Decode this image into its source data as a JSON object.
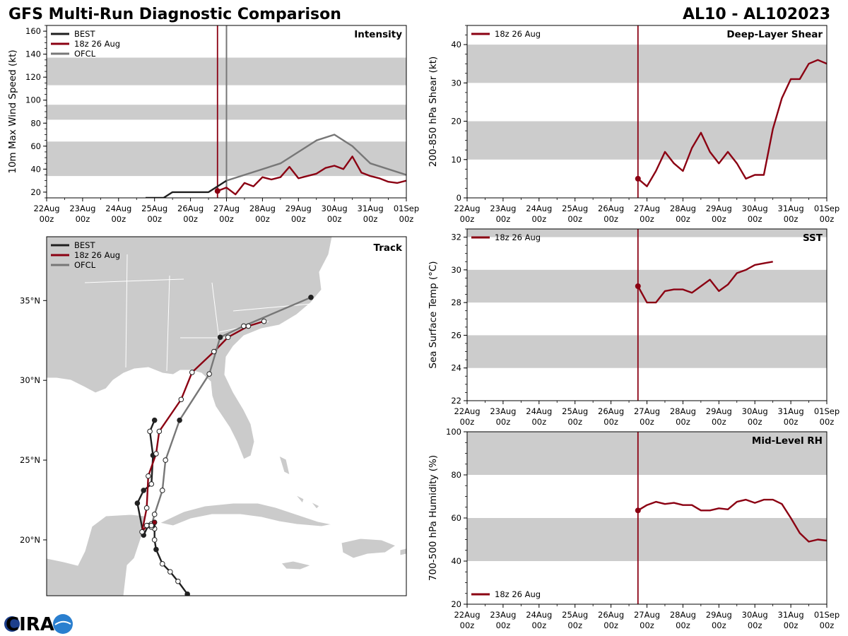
{
  "header": {
    "title": "GFS Multi-Run Diagnostic Comparison",
    "storm": "AL10 - AL102023"
  },
  "logo": {
    "text": "CIRA"
  },
  "colors": {
    "best": "#1f1f1f",
    "run": "#8b0012",
    "ofcl": "#777777",
    "band": "#cccccc",
    "land": "#cbcbcb"
  },
  "time_axis": {
    "labels": [
      "22Aug",
      "23Aug",
      "24Aug",
      "25Aug",
      "26Aug",
      "27Aug",
      "28Aug",
      "29Aug",
      "30Aug",
      "31Aug",
      "01Sep"
    ],
    "sublabel": "00z"
  },
  "chart_data": [
    {
      "id": "intensity",
      "type": "line",
      "title": "Intensity",
      "xlabel": "",
      "ylabel": "10m Max Wind Speed (kt)",
      "x_units": "days since 22Aug 00z",
      "xlim": [
        0,
        10
      ],
      "ylim": [
        15,
        165
      ],
      "yticks": [
        20,
        40,
        60,
        80,
        100,
        120,
        140,
        160
      ],
      "bands": [
        [
          34,
          64
        ],
        [
          83,
          96
        ],
        [
          113,
          137
        ]
      ],
      "init_line": 4.75,
      "ofcl_line": 5.0,
      "legend": {
        "placement": "top-left",
        "entries": [
          "BEST",
          "18z 26 Aug",
          "OFCL"
        ]
      },
      "series": [
        {
          "name": "BEST",
          "color": "#1f1f1f",
          "x": [
            2.75,
            3.25,
            3.5,
            4.5,
            5.0
          ],
          "y": [
            15,
            15,
            20,
            20,
            30
          ]
        },
        {
          "name": "OFCL",
          "color": "#777777",
          "x": [
            5.0,
            5.5,
            6.5,
            7.5,
            8.0,
            8.5,
            9.0,
            10.0
          ],
          "y": [
            30,
            35,
            45,
            65,
            70,
            60,
            45,
            35
          ]
        },
        {
          "name": "18z 26 Aug",
          "color": "#8b0012",
          "marker_first": true,
          "x": [
            4.75,
            5.0,
            5.25,
            5.5,
            5.75,
            6.0,
            6.25,
            6.5,
            6.75,
            7.0,
            7.25,
            7.5,
            7.75,
            8.0,
            8.25,
            8.5,
            8.75,
            9.0,
            9.25,
            9.5,
            9.75,
            10.0
          ],
          "y": [
            21,
            24,
            18,
            28,
            25,
            33,
            31,
            33,
            42,
            32,
            34,
            36,
            41,
            43,
            40,
            51,
            37,
            34,
            32,
            29,
            28,
            30
          ]
        }
      ]
    },
    {
      "id": "shear",
      "type": "line",
      "title": "Deep-Layer Shear",
      "xlabel": "",
      "ylabel": "200-850 hPa Shear (kt)",
      "x_units": "days since 22Aug 00z",
      "xlim": [
        0,
        10
      ],
      "ylim": [
        0,
        45
      ],
      "yticks": [
        0,
        10,
        20,
        30,
        40
      ],
      "bands": [
        [
          10,
          20
        ],
        [
          30,
          40
        ]
      ],
      "init_line": 4.75,
      "legend": {
        "placement": "top-left",
        "entries": [
          "18z 26 Aug"
        ]
      },
      "series": [
        {
          "name": "18z 26 Aug",
          "color": "#8b0012",
          "marker_first": true,
          "x": [
            4.75,
            5.0,
            5.25,
            5.5,
            5.75,
            6.0,
            6.25,
            6.5,
            6.75,
            7.0,
            7.25,
            7.5,
            7.75,
            8.0,
            8.25,
            8.5,
            8.75,
            9.0,
            9.25,
            9.5,
            9.75,
            10.0
          ],
          "y": [
            5,
            3,
            7,
            12,
            9,
            7,
            13,
            17,
            12,
            9,
            12,
            9,
            5,
            6,
            6,
            18,
            26,
            31,
            31,
            35,
            36,
            35
          ]
        }
      ]
    },
    {
      "id": "sst",
      "type": "line",
      "title": "SST",
      "xlabel": "",
      "ylabel": "Sea Surface Temp (°C)",
      "x_units": "days since 22Aug 00z",
      "xlim": [
        0,
        10
      ],
      "ylim": [
        22,
        32.5
      ],
      "yticks": [
        22,
        24,
        26,
        28,
        30,
        32
      ],
      "bands": [
        [
          24,
          26
        ],
        [
          28,
          30
        ],
        [
          32,
          33
        ]
      ],
      "init_line": 4.75,
      "legend": {
        "placement": "top-left",
        "entries": [
          "18z 26 Aug"
        ]
      },
      "series": [
        {
          "name": "18z 26 Aug",
          "color": "#8b0012",
          "marker_first": true,
          "x": [
            4.75,
            5.0,
            5.25,
            5.5,
            5.75,
            6.0,
            6.25,
            6.5,
            6.75,
            7.0,
            7.25,
            7.5,
            7.75,
            8.0,
            8.25,
            8.5
          ],
          "y": [
            29,
            28,
            28,
            28.7,
            28.8,
            28.8,
            28.6,
            29.0,
            29.4,
            28.7,
            29.1,
            29.8,
            30.0,
            30.3,
            30.4,
            30.5
          ]
        }
      ]
    },
    {
      "id": "rh",
      "type": "line",
      "title": "Mid-Level RH",
      "xlabel": "",
      "ylabel": "700-500 hPa Humidity (%)",
      "x_units": "days since 22Aug 00z",
      "xlim": [
        0,
        10
      ],
      "ylim": [
        20,
        100
      ],
      "yticks": [
        20,
        40,
        60,
        80,
        100
      ],
      "bands": [
        [
          40,
          60
        ],
        [
          80,
          100
        ]
      ],
      "init_line": 4.75,
      "legend": {
        "placement": "bottom-left",
        "entries": [
          "18z 26 Aug"
        ]
      },
      "series": [
        {
          "name": "18z 26 Aug",
          "color": "#8b0012",
          "marker_first": true,
          "x": [
            4.75,
            5.0,
            5.25,
            5.5,
            5.75,
            6.0,
            6.25,
            6.5,
            6.75,
            7.0,
            7.25,
            7.5,
            7.75,
            8.0,
            8.25,
            8.5,
            8.75,
            9.0,
            9.25,
            9.5,
            9.75,
            10.0
          ],
          "y": [
            63.5,
            66,
            67.5,
            66.5,
            67,
            66,
            66,
            63.5,
            63.5,
            64.5,
            64,
            67.5,
            68.5,
            67,
            68.5,
            68.5,
            66.5,
            60,
            53,
            49,
            50,
            49.5
          ]
        }
      ]
    },
    {
      "id": "track",
      "type": "scatter",
      "title": "Track",
      "x_units": "degrees longitude",
      "y_units": "degrees latitude",
      "xlim": [
        -91,
        -68
      ],
      "ylim": [
        16.5,
        39
      ],
      "ylabels": [
        "35°N",
        "30°N",
        "25°N",
        "20°N"
      ],
      "yticks": [
        35,
        30,
        25,
        20
      ],
      "legend": {
        "placement": "top-left",
        "entries": [
          "BEST",
          "18z 26 Aug",
          "OFCL"
        ]
      },
      "series": [
        {
          "name": "BEST",
          "color": "#1f1f1f",
          "x": [
            -82.0,
            -82.6,
            -83.1,
            -83.6,
            -84.0,
            -84.1,
            -84.1,
            -84.2,
            -84.3,
            -84.5,
            -84.8,
            -85.2,
            -84.8,
            -84.3,
            -84.2,
            -84.4,
            -84.1
          ],
          "y": [
            16.6,
            17.4,
            18.0,
            18.5,
            19.4,
            20.0,
            20.7,
            20.9,
            21.0,
            20.9,
            20.3,
            22.3,
            23.1,
            23.5,
            25.3,
            26.8,
            27.5
          ],
          "filled": [
            true,
            false,
            false,
            false,
            true,
            false,
            false,
            true,
            false,
            false,
            true,
            true,
            true,
            false,
            true,
            false,
            true
          ]
        },
        {
          "name": "18z 26 Aug",
          "color": "#8b0012",
          "x": [
            -84.1,
            -84.3,
            -84.6,
            -84.9,
            -84.6,
            -84.5,
            -84.0,
            -83.8,
            -82.4,
            -81.7,
            -80.3,
            -79.4,
            -78.1,
            -77.1
          ],
          "y": [
            21.1,
            20.8,
            20.9,
            20.5,
            22.0,
            24.0,
            25.4,
            26.8,
            28.8,
            30.5,
            31.8,
            32.7,
            33.4,
            33.7
          ],
          "filled": [
            true,
            false,
            false,
            false,
            false,
            false,
            false,
            false,
            false,
            false,
            false,
            false,
            false,
            false
          ]
        },
        {
          "name": "OFCL",
          "color": "#777777",
          "x": [
            -84.3,
            -84.1,
            -83.6,
            -83.4,
            -82.5,
            -80.6,
            -79.9,
            -78.4,
            -74.1
          ],
          "y": [
            20.9,
            21.6,
            23.1,
            25.0,
            27.5,
            30.4,
            32.7,
            33.4,
            35.2
          ],
          "filled": [
            false,
            false,
            false,
            false,
            true,
            false,
            true,
            false,
            true
          ]
        }
      ]
    }
  ]
}
